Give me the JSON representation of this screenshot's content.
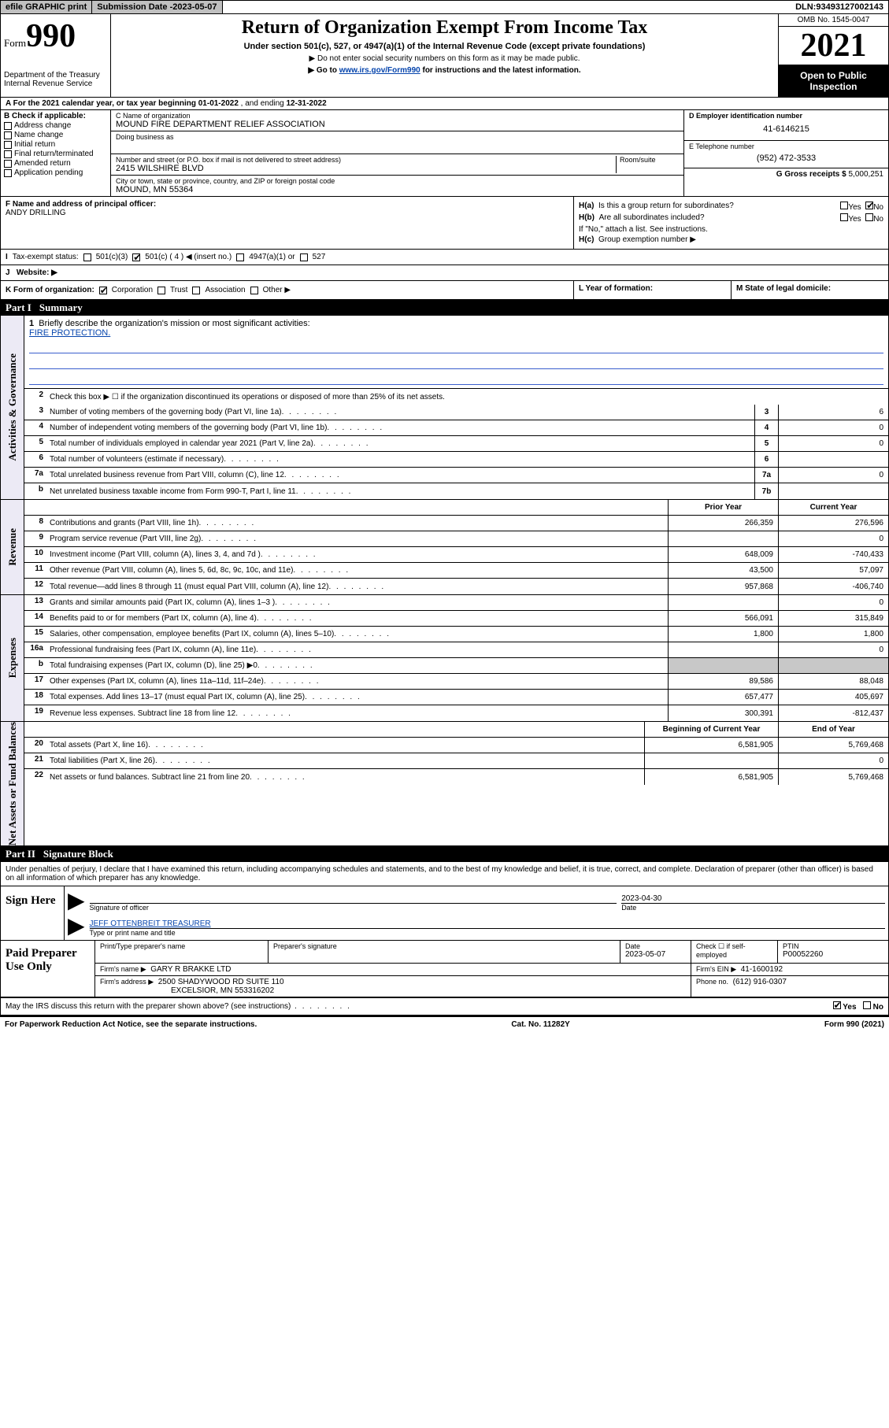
{
  "topbar": {
    "efile": "efile GRAPHIC print",
    "submission_label": "Submission Date - ",
    "submission_date": "2023-05-07",
    "dln_label": "DLN: ",
    "dln": "93493127002143"
  },
  "header": {
    "form_word": "Form",
    "form_number": "990",
    "dept": "Department of the Treasury",
    "irs": "Internal Revenue Service",
    "title": "Return of Organization Exempt From Income Tax",
    "subtitle": "Under section 501(c), 527, or 4947(a)(1) of the Internal Revenue Code (except private foundations)",
    "note1": "▶ Do not enter social security numbers on this form as it may be made public.",
    "note2_pre": "▶ Go to ",
    "note2_link": "www.irs.gov/Form990",
    "note2_post": " for instructions and the latest information.",
    "omb": "OMB No. 1545-0047",
    "year": "2021",
    "inspection": "Open to Public Inspection"
  },
  "line_a": {
    "prefix": "A For the 2021 calendar year, or tax year beginning ",
    "begin": "01-01-2022",
    "mid": " , and ending ",
    "end": "12-31-2022"
  },
  "section_b": {
    "label": "B Check if applicable:",
    "items": [
      "Address change",
      "Name change",
      "Initial return",
      "Final return/terminated",
      "Amended return",
      "Application pending"
    ]
  },
  "section_c": {
    "name_label": "C Name of organization",
    "name": "MOUND FIRE DEPARTMENT RELIEF ASSOCIATION",
    "dba_label": "Doing business as",
    "dba": "",
    "street_label": "Number and street (or P.O. box if mail is not delivered to street address)",
    "room_label": "Room/suite",
    "street": "2415 WILSHIRE BLVD",
    "city_label": "City or town, state or province, country, and ZIP or foreign postal code",
    "city": "MOUND, MN  55364"
  },
  "section_d": {
    "label": "D Employer identification number",
    "ein": "41-6146215",
    "e_label": "E Telephone number",
    "phone": "(952) 472-3533",
    "g_label": "G Gross receipts $ ",
    "gross": "5,000,251"
  },
  "section_f": {
    "label": "F Name and address of principal officer:",
    "name": "ANDY DRILLING"
  },
  "section_h": {
    "ha_label": "H(a)",
    "ha_text": "Is this a group return for subordinates?",
    "ha_yes": "Yes",
    "ha_no": "No",
    "hb_label": "H(b)",
    "hb_text": "Are all subordinates included?",
    "hb_note": "If \"No,\" attach a list. See instructions.",
    "hc_label": "H(c)",
    "hc_text": "Group exemption number ▶"
  },
  "section_i": {
    "label": "I",
    "text": "Tax-exempt status:",
    "opts": [
      "501(c)(3)",
      "501(c) ( 4 ) ◀ (insert no.)",
      "4947(a)(1) or",
      "527"
    ]
  },
  "section_j": {
    "label": "J",
    "text": "Website: ▶"
  },
  "section_k": {
    "label": "K Form of organization:",
    "opts": [
      "Corporation",
      "Trust",
      "Association",
      "Other ▶"
    ]
  },
  "section_l": {
    "label": "L Year of formation:"
  },
  "section_m": {
    "label": "M State of legal domicile:"
  },
  "part1": {
    "hdr_part": "Part I",
    "hdr_title": "Summary",
    "tab1": "Activities & Governance",
    "tab2": "Revenue",
    "tab3": "Expenses",
    "tab4": "Net Assets or Fund Balances",
    "l1_num": "1",
    "l1_text": "Briefly describe the organization's mission or most significant activities:",
    "l1_val": "FIRE PROTECTION.",
    "l2_num": "2",
    "l2_text": "Check this box ▶ ☐  if the organization discontinued its operations or disposed of more than 25% of its net assets.",
    "rows_gov": [
      {
        "n": "3",
        "t": "Number of voting members of the governing body (Part VI, line 1a)",
        "b": "3",
        "v": "6"
      },
      {
        "n": "4",
        "t": "Number of independent voting members of the governing body (Part VI, line 1b)",
        "b": "4",
        "v": "0"
      },
      {
        "n": "5",
        "t": "Total number of individuals employed in calendar year 2021 (Part V, line 2a)",
        "b": "5",
        "v": "0"
      },
      {
        "n": "6",
        "t": "Total number of volunteers (estimate if necessary)",
        "b": "6",
        "v": ""
      },
      {
        "n": "7a",
        "t": "Total unrelated business revenue from Part VIII, column (C), line 12",
        "b": "7a",
        "v": "0"
      },
      {
        "n": "b",
        "t": "Net unrelated business taxable income from Form 990-T, Part I, line 11",
        "b": "7b",
        "v": ""
      }
    ],
    "col_hdr_prior": "Prior Year",
    "col_hdr_curr": "Current Year",
    "rows_rev": [
      {
        "n": "8",
        "t": "Contributions and grants (Part VIII, line 1h)",
        "p": "266,359",
        "c": "276,596"
      },
      {
        "n": "9",
        "t": "Program service revenue (Part VIII, line 2g)",
        "p": "",
        "c": "0"
      },
      {
        "n": "10",
        "t": "Investment income (Part VIII, column (A), lines 3, 4, and 7d )",
        "p": "648,009",
        "c": "-740,433"
      },
      {
        "n": "11",
        "t": "Other revenue (Part VIII, column (A), lines 5, 6d, 8c, 9c, 10c, and 11e)",
        "p": "43,500",
        "c": "57,097"
      },
      {
        "n": "12",
        "t": "Total revenue—add lines 8 through 11 (must equal Part VIII, column (A), line 12)",
        "p": "957,868",
        "c": "-406,740"
      }
    ],
    "rows_exp": [
      {
        "n": "13",
        "t": "Grants and similar amounts paid (Part IX, column (A), lines 1–3 )",
        "p": "",
        "c": "0"
      },
      {
        "n": "14",
        "t": "Benefits paid to or for members (Part IX, column (A), line 4)",
        "p": "566,091",
        "c": "315,849"
      },
      {
        "n": "15",
        "t": "Salaries, other compensation, employee benefits (Part IX, column (A), lines 5–10)",
        "p": "1,800",
        "c": "1,800"
      },
      {
        "n": "16a",
        "t": "Professional fundraising fees (Part IX, column (A), line 11e)",
        "p": "",
        "c": "0"
      },
      {
        "n": "b",
        "t": "Total fundraising expenses (Part IX, column (D), line 25) ▶0",
        "p": "grey",
        "c": "grey"
      },
      {
        "n": "17",
        "t": "Other expenses (Part IX, column (A), lines 11a–11d, 11f–24e)",
        "p": "89,586",
        "c": "88,048"
      },
      {
        "n": "18",
        "t": "Total expenses. Add lines 13–17 (must equal Part IX, column (A), line 25)",
        "p": "657,477",
        "c": "405,697"
      },
      {
        "n": "19",
        "t": "Revenue less expenses. Subtract line 18 from line 12",
        "p": "300,391",
        "c": "-812,437"
      }
    ],
    "col_hdr_beg": "Beginning of Current Year",
    "col_hdr_end": "End of Year",
    "rows_net": [
      {
        "n": "20",
        "t": "Total assets (Part X, line 16)",
        "p": "6,581,905",
        "c": "5,769,468"
      },
      {
        "n": "21",
        "t": "Total liabilities (Part X, line 26)",
        "p": "",
        "c": "0"
      },
      {
        "n": "22",
        "t": "Net assets or fund balances. Subtract line 21 from line 20",
        "p": "6,581,905",
        "c": "5,769,468"
      }
    ]
  },
  "part2": {
    "hdr_part": "Part II",
    "hdr_title": "Signature Block",
    "intro": "Under penalties of perjury, I declare that I have examined this return, including accompanying schedules and statements, and to the best of my knowledge and belief, it is true, correct, and complete. Declaration of preparer (other than officer) is based on all information of which preparer has any knowledge.",
    "sign_here": "Sign Here",
    "sig_officer_label": "Signature of officer",
    "sig_date": "2023-04-30",
    "date_label": "Date",
    "officer_name": "JEFF OTTENBREIT TREASURER",
    "officer_sub": "Type or print name and title",
    "paid_prep": "Paid Preparer Use Only",
    "prep_name_label": "Print/Type preparer's name",
    "prep_sig_label": "Preparer's signature",
    "prep_date_label": "Date",
    "prep_date": "2023-05-07",
    "prep_check_label": "Check ☐ if self-employed",
    "ptin_label": "PTIN",
    "ptin": "P00052260",
    "firm_name_label": "Firm's name     ▶",
    "firm_name": "GARY R BRAKKE LTD",
    "firm_ein_label": "Firm's EIN ▶",
    "firm_ein": "41-1600192",
    "firm_addr_label": "Firm's address ▶",
    "firm_addr1": "2500 SHADYWOOD RD SUITE 110",
    "firm_addr2": "EXCELSIOR, MN  553316202",
    "phone_label": "Phone no.",
    "phone": "(612) 916-0307"
  },
  "footer": {
    "q": "May the IRS discuss this return with the preparer shown above? (see instructions)",
    "yes": "Yes",
    "no": "No",
    "pra": "For Paperwork Reduction Act Notice, see the separate instructions.",
    "cat": "Cat. No. 11282Y",
    "form": "Form 990 (2021)"
  }
}
